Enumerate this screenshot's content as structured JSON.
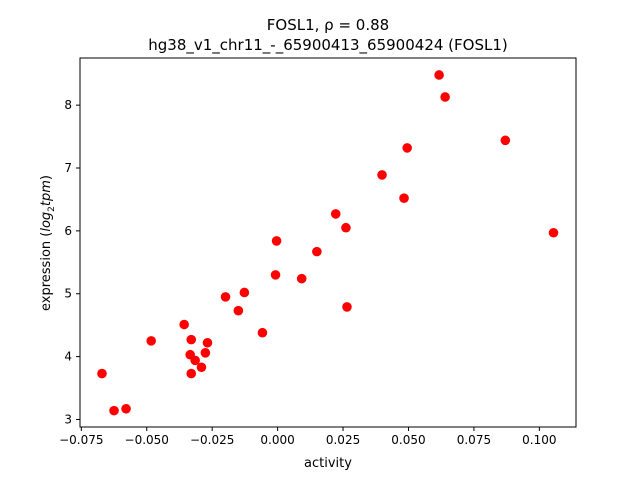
{
  "chart_data": {
    "type": "scatter",
    "title_line1": "FOSL1, ρ = 0.88",
    "title_line2": "hg38_v1_chr11_-_65900413_65900424 (FOSL1)",
    "xlabel": "activity",
    "ylabel_prefix": "expression (",
    "ylabel_math": "log",
    "ylabel_sub": "2",
    "ylabel_math2": "tpm",
    "ylabel_suffix": ")",
    "xlim": [
      -0.0755,
      0.114
    ],
    "ylim": [
      2.88,
      8.75
    ],
    "xticks": [
      -0.075,
      -0.05,
      -0.025,
      0.0,
      0.025,
      0.05,
      0.075,
      0.1
    ],
    "xtick_labels": [
      "−0.075",
      "−0.050",
      "−0.025",
      "0.000",
      "0.025",
      "0.050",
      "0.075",
      "0.100"
    ],
    "yticks": [
      3,
      4,
      5,
      6,
      7,
      8
    ],
    "ytick_labels": [
      "3",
      "4",
      "5",
      "6",
      "7",
      "8"
    ],
    "color": "#ff0000",
    "grid": false,
    "points": [
      [
        -0.0671,
        3.73
      ],
      [
        -0.0625,
        3.14
      ],
      [
        -0.0579,
        3.17
      ],
      [
        -0.0483,
        4.25
      ],
      [
        -0.0357,
        4.51
      ],
      [
        -0.033,
        4.27
      ],
      [
        -0.0334,
        4.03
      ],
      [
        -0.033,
        3.73
      ],
      [
        -0.0315,
        3.94
      ],
      [
        -0.0291,
        3.83
      ],
      [
        -0.0276,
        4.06
      ],
      [
        -0.0268,
        4.22
      ],
      [
        -0.0199,
        4.95
      ],
      [
        -0.015,
        4.73
      ],
      [
        -0.0127,
        5.02
      ],
      [
        -0.0058,
        4.38
      ],
      [
        -0.0008,
        5.3
      ],
      [
        -0.0004,
        5.84
      ],
      [
        0.0092,
        5.24
      ],
      [
        0.015,
        5.67
      ],
      [
        0.0222,
        6.27
      ],
      [
        0.0261,
        6.05
      ],
      [
        0.0265,
        4.79
      ],
      [
        0.0399,
        6.89
      ],
      [
        0.0483,
        6.52
      ],
      [
        0.0495,
        7.32
      ],
      [
        0.0617,
        8.48
      ],
      [
        0.064,
        8.13
      ],
      [
        0.087,
        7.44
      ],
      [
        0.1054,
        5.97
      ]
    ]
  }
}
